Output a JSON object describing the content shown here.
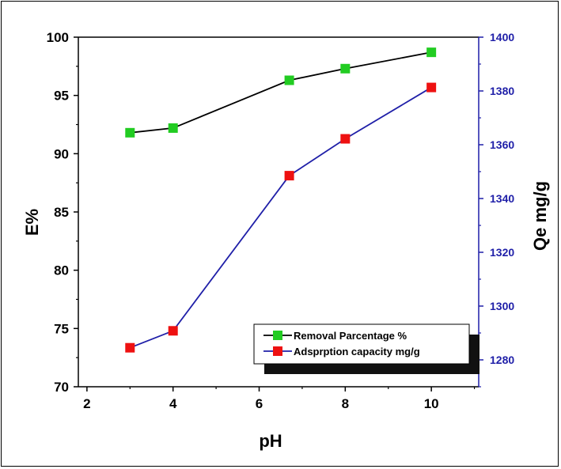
{
  "chart_data": {
    "type": "line",
    "xlabel": "pH",
    "ylabel_left": "E%",
    "ylabel_right": "Qe mg/g",
    "xlim": [
      1.8,
      11.1
    ],
    "ylim_left": [
      70,
      100
    ],
    "ylim_right": [
      1270,
      1400
    ],
    "x_ticks": [
      2,
      4,
      6,
      8,
      10
    ],
    "y_left_ticks": [
      70,
      75,
      80,
      85,
      90,
      95,
      100
    ],
    "y_right_ticks": [
      1280,
      1300,
      1320,
      1340,
      1360,
      1380,
      1400
    ],
    "grid": false,
    "legend_position": "bottom-right",
    "series": [
      {
        "name": "Removal Parcentage %",
        "axis": "left",
        "line_color": "#000000",
        "marker_color": "#22cc22",
        "x": [
          3,
          4,
          6.7,
          8,
          10
        ],
        "y": [
          91.8,
          92.2,
          96.3,
          97.3,
          98.7
        ]
      },
      {
        "name": "Adsprption capacity  mg/g",
        "axis": "right",
        "line_color": "#1f1fa8",
        "marker_color": "#ee1111",
        "x": [
          3,
          4,
          6.7,
          8,
          10
        ],
        "y": [
          1284.5,
          1290.8,
          1348.5,
          1362.2,
          1381.3
        ]
      }
    ],
    "right_axis_color": "#1f1fa8"
  }
}
